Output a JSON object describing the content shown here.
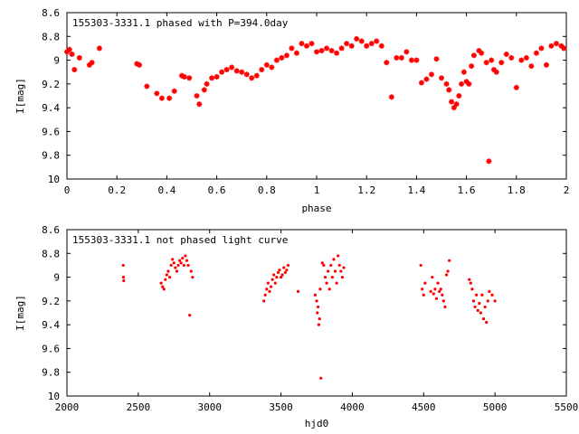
{
  "chart_data": [
    {
      "type": "scatter",
      "title": "155303-3331.1 phased with P=394.0day",
      "xlabel": "phase",
      "ylabel": "I[mag]",
      "xlim": [
        0,
        2
      ],
      "ylim": [
        10,
        8.6
      ],
      "y_inverted": true,
      "xticks": [
        "0",
        "0.2",
        "0.4",
        "0.6",
        "0.8",
        "1",
        "1.2",
        "1.4",
        "1.6",
        "1.8",
        "2"
      ],
      "yticks": [
        "8.6",
        "8.8",
        "9",
        "9.2",
        "9.4",
        "9.6",
        "9.8",
        "10"
      ],
      "marker_color": "#ff0000",
      "grid": false,
      "series": [
        {
          "x": [
            0.0,
            0.01,
            0.02,
            0.03,
            0.05,
            0.09,
            0.1,
            0.13,
            0.28,
            0.29,
            0.32,
            0.36,
            0.38,
            0.41,
            0.43,
            0.46,
            0.47,
            0.49,
            0.52,
            0.53,
            0.55,
            0.56,
            0.58,
            0.6,
            0.62,
            0.64,
            0.66,
            0.68,
            0.7,
            0.72,
            0.74,
            0.76,
            0.78,
            0.8,
            0.82,
            0.84,
            0.86,
            0.88,
            0.9,
            0.92,
            0.94,
            0.96,
            0.98,
            1.0,
            1.02,
            1.04,
            1.06,
            1.08,
            1.1,
            1.12,
            1.14,
            1.16,
            1.18,
            1.2,
            1.22,
            1.24,
            1.26,
            1.28,
            1.3,
            1.32,
            1.34,
            1.36,
            1.38,
            1.4,
            1.42,
            1.44,
            1.46,
            1.48,
            1.5,
            1.52,
            1.53,
            1.54,
            1.55,
            1.56,
            1.57,
            1.58,
            1.59,
            1.6,
            1.61,
            1.62,
            1.63,
            1.65,
            1.66,
            1.68,
            1.69,
            1.7,
            1.71,
            1.72,
            1.74,
            1.76,
            1.78,
            1.8,
            1.82,
            1.84,
            1.86,
            1.88,
            1.9,
            1.92,
            1.94,
            1.96,
            1.98,
            1.99
          ],
          "y": [
            8.93,
            8.91,
            8.95,
            9.08,
            8.98,
            9.04,
            9.02,
            8.9,
            9.03,
            9.04,
            9.22,
            9.28,
            9.32,
            9.32,
            9.26,
            9.13,
            9.14,
            9.15,
            9.3,
            9.37,
            9.25,
            9.2,
            9.15,
            9.14,
            9.1,
            9.08,
            9.06,
            9.09,
            9.1,
            9.12,
            9.15,
            9.13,
            9.08,
            9.04,
            9.06,
            9.0,
            8.98,
            8.96,
            8.9,
            8.94,
            8.86,
            8.88,
            8.86,
            8.93,
            8.92,
            8.9,
            8.92,
            8.94,
            8.9,
            8.86,
            8.88,
            8.82,
            8.84,
            8.88,
            8.86,
            8.84,
            8.88,
            9.02,
            9.31,
            8.98,
            8.98,
            8.93,
            9.0,
            9.0,
            9.19,
            9.16,
            9.12,
            8.99,
            9.15,
            9.2,
            9.25,
            9.35,
            9.4,
            9.37,
            9.3,
            9.2,
            9.1,
            9.18,
            9.2,
            9.05,
            8.96,
            8.92,
            8.94,
            9.02,
            9.85,
            9.0,
            9.08,
            9.1,
            9.02,
            8.95,
            8.98,
            9.23,
            9.0,
            8.98,
            9.05,
            8.94,
            8.9,
            9.04,
            8.88,
            8.86,
            8.88,
            8.9
          ]
        }
      ]
    },
    {
      "type": "scatter",
      "title": "155303-3331.1 not phased light curve",
      "xlabel": "hjd0",
      "ylabel": "I[mag]",
      "xlim": [
        2000,
        5500
      ],
      "ylim": [
        10,
        8.6
      ],
      "y_inverted": true,
      "xticks": [
        "2000",
        "2500",
        "3000",
        "3500",
        "4000",
        "4500",
        "5000",
        "5500"
      ],
      "yticks": [
        "8.6",
        "8.8",
        "9",
        "9.2",
        "9.4",
        "9.6",
        "9.8",
        "10"
      ],
      "marker_color": "#ff0000",
      "grid": false,
      "series": [
        {
          "x": [
            2395,
            2396,
            2398,
            2660,
            2670,
            2680,
            2690,
            2700,
            2710,
            2720,
            2730,
            2740,
            2750,
            2760,
            2770,
            2780,
            2790,
            2800,
            2810,
            2820,
            2830,
            2840,
            2850,
            2860,
            2870,
            2880,
            3380,
            3390,
            3400,
            3410,
            3420,
            3430,
            3440,
            3450,
            3460,
            3470,
            3480,
            3490,
            3500,
            3510,
            3520,
            3530,
            3540,
            3550,
            3620,
            3740,
            3750,
            3755,
            3760,
            3765,
            3770,
            3775,
            3780,
            3790,
            3800,
            3810,
            3820,
            3830,
            3840,
            3850,
            3860,
            3870,
            3880,
            3890,
            3900,
            3910,
            3920,
            3930,
            3940,
            4480,
            4490,
            4500,
            4510,
            4550,
            4560,
            4570,
            4580,
            4590,
            4600,
            4610,
            4620,
            4630,
            4640,
            4650,
            4660,
            4670,
            4680,
            4820,
            4830,
            4840,
            4850,
            4860,
            4870,
            4880,
            4890,
            4900,
            4910,
            4920,
            4930,
            4940,
            4950,
            4960,
            4980,
            5000
          ],
          "y": [
            8.9,
            9.0,
            9.03,
            9.05,
            9.08,
            9.1,
            9.02,
            8.98,
            8.95,
            9.0,
            8.9,
            8.85,
            8.88,
            8.92,
            8.95,
            8.9,
            8.86,
            8.88,
            8.84,
            8.9,
            8.82,
            8.86,
            8.9,
            9.32,
            8.95,
            9.0,
            9.2,
            9.15,
            9.1,
            9.05,
            9.12,
            9.08,
            9.02,
            8.98,
            9.05,
            9.0,
            8.96,
            8.94,
            9.0,
            8.98,
            8.92,
            8.96,
            8.94,
            8.9,
            9.12,
            9.15,
            9.2,
            9.3,
            9.25,
            9.4,
            9.35,
            9.1,
            9.85,
            8.88,
            8.9,
            9.0,
            9.05,
            8.95,
            9.1,
            8.9,
            9.0,
            8.85,
            8.95,
            9.05,
            8.82,
            8.9,
            8.95,
            9.0,
            8.92,
            8.9,
            9.1,
            9.15,
            9.05,
            9.12,
            9.0,
            9.14,
            9.1,
            9.18,
            9.05,
            9.12,
            9.1,
            9.15,
            9.2,
            9.25,
            8.98,
            8.95,
            8.86,
            9.02,
            9.05,
            9.1,
            9.2,
            9.25,
            9.15,
            9.28,
            9.22,
            9.3,
            9.15,
            9.35,
            9.25,
            9.38,
            9.2,
            9.12,
            9.15,
            9.2
          ]
        }
      ]
    }
  ]
}
